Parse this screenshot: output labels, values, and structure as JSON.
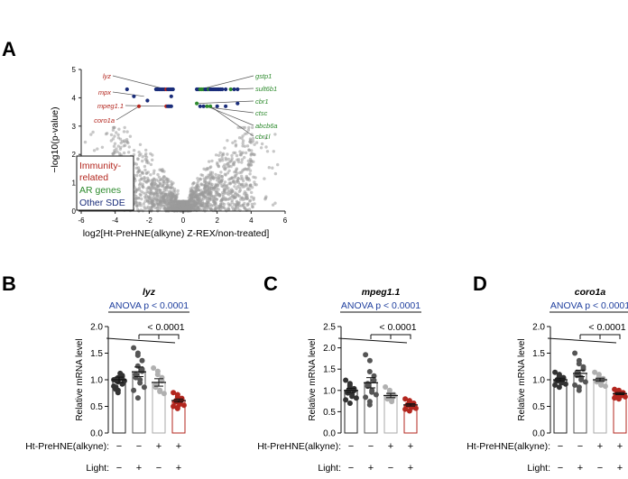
{
  "panel_labels": {
    "a": "A",
    "b": "B",
    "c": "C",
    "d": "D"
  },
  "colors": {
    "immune": "#b3261e",
    "ar": "#2e8b2e",
    "other": "#1a2d7a",
    "gray": "#9a9a9a",
    "dark": "#333333",
    "anova": "#1f3f9e"
  },
  "chart_data": [
    {
      "type": "scatter",
      "id": "volcano",
      "xlabel": "log2[Ht-PreHNE(alkyne) Z-REX/non-treated]",
      "ylabel": "−log10(p-value)",
      "xlim": [
        -6,
        6
      ],
      "ylim": [
        0,
        5
      ],
      "xticks": [
        -6,
        -4,
        -2,
        0,
        2,
        4,
        6
      ],
      "yticks": [
        0,
        1,
        2,
        3,
        4,
        5
      ],
      "legend": {
        "position": "bottom-left",
        "entries": [
          {
            "label": "Immunity-",
            "label2": "related",
            "color_key": "immune"
          },
          {
            "label": "AR genes",
            "color_key": "ar"
          },
          {
            "label": "Other SDE",
            "color_key": "other"
          }
        ]
      },
      "gene_labels_left": [
        {
          "name": "lyz",
          "x": -1.0,
          "y": 4.3
        },
        {
          "name": "mpx",
          "x": -2.3,
          "y": 4.05
        },
        {
          "name": "mpeg1.1",
          "x": -1.0,
          "y": 3.7
        },
        {
          "name": "coro1a",
          "x": -2.6,
          "y": 3.7
        }
      ],
      "gene_labels_right": [
        {
          "name": "gstp1",
          "x": 1.0,
          "y": 4.3
        },
        {
          "name": "sult6b1",
          "x": 2.8,
          "y": 4.3
        },
        {
          "name": "cbr1",
          "x": 0.8,
          "y": 3.8
        },
        {
          "name": "ctsc",
          "x": 1.0,
          "y": 3.7
        },
        {
          "name": "abcb6a",
          "x": 1.4,
          "y": 3.7
        },
        {
          "name": "cbr1l",
          "x": 1.6,
          "y": 3.7
        }
      ],
      "highlight_points": [
        {
          "x": -3.3,
          "y": 4.3,
          "group": "other"
        },
        {
          "x": -2.9,
          "y": 4.05,
          "group": "other"
        },
        {
          "x": -2.1,
          "y": 3.9,
          "group": "other"
        },
        {
          "x": -1.6,
          "y": 4.3,
          "group": "other"
        },
        {
          "x": -1.5,
          "y": 4.3,
          "group": "other"
        },
        {
          "x": -1.4,
          "y": 4.3,
          "group": "other"
        },
        {
          "x": -1.3,
          "y": 4.3,
          "group": "other"
        },
        {
          "x": -1.2,
          "y": 4.3,
          "group": "other"
        },
        {
          "x": -1.1,
          "y": 4.3,
          "group": "other"
        },
        {
          "x": -1.0,
          "y": 4.3,
          "group": "immune"
        },
        {
          "x": -0.9,
          "y": 4.3,
          "group": "other"
        },
        {
          "x": -0.8,
          "y": 4.3,
          "group": "other"
        },
        {
          "x": -0.7,
          "y": 4.3,
          "group": "other"
        },
        {
          "x": -0.6,
          "y": 4.3,
          "group": "other"
        },
        {
          "x": -0.7,
          "y": 4.05,
          "group": "other"
        },
        {
          "x": -2.6,
          "y": 3.7,
          "group": "immune"
        },
        {
          "x": -1.0,
          "y": 3.7,
          "group": "immune"
        },
        {
          "x": -0.9,
          "y": 3.7,
          "group": "other"
        },
        {
          "x": -0.8,
          "y": 3.7,
          "group": "other"
        },
        {
          "x": -0.7,
          "y": 3.7,
          "group": "other"
        },
        {
          "x": 0.8,
          "y": 4.3,
          "group": "other"
        },
        {
          "x": 0.9,
          "y": 4.3,
          "group": "other"
        },
        {
          "x": 1.0,
          "y": 4.3,
          "group": "ar"
        },
        {
          "x": 1.1,
          "y": 4.3,
          "group": "ar"
        },
        {
          "x": 1.2,
          "y": 4.3,
          "group": "ar"
        },
        {
          "x": 1.3,
          "y": 4.3,
          "group": "other"
        },
        {
          "x": 1.4,
          "y": 4.3,
          "group": "other"
        },
        {
          "x": 1.5,
          "y": 4.3,
          "group": "ar"
        },
        {
          "x": 1.6,
          "y": 4.3,
          "group": "other"
        },
        {
          "x": 1.7,
          "y": 4.3,
          "group": "other"
        },
        {
          "x": 1.8,
          "y": 4.3,
          "group": "other"
        },
        {
          "x": 1.9,
          "y": 4.3,
          "group": "other"
        },
        {
          "x": 2.0,
          "y": 4.3,
          "group": "other"
        },
        {
          "x": 2.1,
          "y": 4.3,
          "group": "other"
        },
        {
          "x": 2.2,
          "y": 4.3,
          "group": "other"
        },
        {
          "x": 2.3,
          "y": 4.3,
          "group": "other"
        },
        {
          "x": 2.5,
          "y": 4.3,
          "group": "other"
        },
        {
          "x": 2.8,
          "y": 4.3,
          "group": "ar"
        },
        {
          "x": 3.0,
          "y": 4.3,
          "group": "other"
        },
        {
          "x": 3.2,
          "y": 4.3,
          "group": "other"
        },
        {
          "x": 0.8,
          "y": 3.8,
          "group": "ar"
        },
        {
          "x": 1.0,
          "y": 3.7,
          "group": "other"
        },
        {
          "x": 1.2,
          "y": 3.7,
          "group": "other"
        },
        {
          "x": 1.4,
          "y": 3.7,
          "group": "ar"
        },
        {
          "x": 1.6,
          "y": 3.7,
          "group": "ar"
        },
        {
          "x": 2.0,
          "y": 3.7,
          "group": "other"
        },
        {
          "x": 2.5,
          "y": 3.7,
          "group": "other"
        },
        {
          "x": 3.2,
          "y": 3.8,
          "group": "other"
        }
      ]
    },
    {
      "type": "bar",
      "id": "lyz",
      "panel": "B",
      "title": "lyz",
      "anova": "ANOVA p < 0.0001",
      "posthoc": "< 0.0001",
      "ylabel": "Relative mRNA level",
      "ylim": [
        0.0,
        2.0
      ],
      "yticks": [
        0.0,
        0.5,
        1.0,
        1.5,
        2.0
      ],
      "row_labels": [
        "Ht-PreHNE(alkyne):",
        "Light:"
      ],
      "conditions": [
        {
          "alkyne": "−",
          "light": "−",
          "mean": 1.0,
          "sem": 0.05,
          "style": "dark",
          "points": [
            1.0,
            1.04,
            0.96,
            1.08,
            0.92,
            0.86,
            0.82,
            1.12,
            1.02,
            0.98,
            0.88,
            0.8,
            0.76,
            1.06
          ]
        },
        {
          "alkyne": "−",
          "light": "+",
          "mean": 1.15,
          "sem": 0.09,
          "style": "dark-light",
          "points": [
            1.6,
            1.5,
            1.46,
            1.2,
            1.16,
            1.1,
            1.04,
            1.0,
            0.94,
            0.86,
            0.8,
            0.66,
            1.26,
            1.36
          ]
        },
        {
          "alkyne": "+",
          "light": "−",
          "mean": 0.95,
          "sem": 0.07,
          "style": "gray",
          "points": [
            1.22,
            1.16,
            1.1,
            1.04,
            0.98,
            0.9,
            0.86,
            0.8,
            0.78,
            0.74
          ]
        },
        {
          "alkyne": "+",
          "light": "+",
          "mean": 0.61,
          "sem": 0.03,
          "style": "red",
          "points": [
            0.76,
            0.72,
            0.68,
            0.65,
            0.62,
            0.6,
            0.58,
            0.56,
            0.54,
            0.52,
            0.5,
            0.48,
            0.46
          ]
        }
      ]
    },
    {
      "type": "bar",
      "id": "mpeg",
      "panel": "C",
      "title": "mpeg1.1",
      "anova": "ANOVA p < 0.0001",
      "posthoc": "< 0.0001",
      "ylabel": "Relative mRNA level",
      "ylim": [
        0.0,
        2.5
      ],
      "yticks": [
        0.0,
        0.5,
        1.0,
        1.5,
        2.0,
        2.5
      ],
      "row_labels": [
        "Ht-PreHNE(alkyne):",
        "Light:"
      ],
      "conditions": [
        {
          "alkyne": "−",
          "light": "−",
          "mean": 1.0,
          "sem": 0.05,
          "style": "dark",
          "points": [
            1.24,
            1.16,
            1.08,
            1.04,
            1.0,
            0.98,
            0.94,
            0.9,
            0.86,
            0.82,
            0.78,
            0.7,
            1.12
          ]
        },
        {
          "alkyne": "−",
          "light": "+",
          "mean": 1.18,
          "sem": 0.12,
          "style": "dark-light",
          "points": [
            1.84,
            1.7,
            1.44,
            1.34,
            1.24,
            1.16,
            1.1,
            1.0,
            0.96,
            0.9,
            0.84,
            0.74,
            0.66
          ]
        },
        {
          "alkyne": "+",
          "light": "−",
          "mean": 0.88,
          "sem": 0.05,
          "style": "gray",
          "points": [
            1.08,
            1.0,
            0.94,
            0.9,
            0.86,
            0.84,
            0.8,
            0.78,
            0.74
          ]
        },
        {
          "alkyne": "+",
          "light": "+",
          "mean": 0.66,
          "sem": 0.03,
          "style": "red",
          "points": [
            0.8,
            0.76,
            0.72,
            0.7,
            0.68,
            0.66,
            0.64,
            0.62,
            0.6,
            0.58,
            0.56,
            0.52
          ]
        }
      ]
    },
    {
      "type": "bar",
      "id": "coro",
      "panel": "D",
      "title": "coro1a",
      "anova": "ANOVA p < 0.0001",
      "posthoc": "< 0.0001",
      "ylabel": "Relative mRNA level",
      "ylim": [
        0.0,
        2.0
      ],
      "yticks": [
        0.0,
        0.5,
        1.0,
        1.5,
        2.0
      ],
      "row_labels": [
        "Ht-PreHNE(alkyne):",
        "Light:"
      ],
      "conditions": [
        {
          "alkyne": "−",
          "light": "−",
          "mean": 1.0,
          "sem": 0.03,
          "style": "dark",
          "points": [
            1.14,
            1.1,
            1.06,
            1.04,
            1.02,
            1.0,
            0.98,
            0.96,
            0.94,
            0.92,
            0.9,
            0.86,
            1.08
          ]
        },
        {
          "alkyne": "−",
          "light": "+",
          "mean": 1.12,
          "sem": 0.06,
          "style": "dark-light",
          "points": [
            1.5,
            1.36,
            1.3,
            1.24,
            1.2,
            1.14,
            1.08,
            1.04,
            1.0,
            0.96,
            0.9,
            0.86,
            0.8
          ]
        },
        {
          "alkyne": "+",
          "light": "−",
          "mean": 1.0,
          "sem": 0.03,
          "style": "gray",
          "points": [
            1.14,
            1.1,
            1.06,
            1.02,
            1.0,
            0.98,
            0.96,
            0.92,
            0.9,
            0.88
          ]
        },
        {
          "alkyne": "+",
          "light": "+",
          "mean": 0.74,
          "sem": 0.02,
          "style": "red",
          "points": [
            0.82,
            0.8,
            0.78,
            0.76,
            0.75,
            0.74,
            0.72,
            0.71,
            0.7,
            0.68,
            0.66,
            0.64
          ]
        }
      ]
    }
  ]
}
